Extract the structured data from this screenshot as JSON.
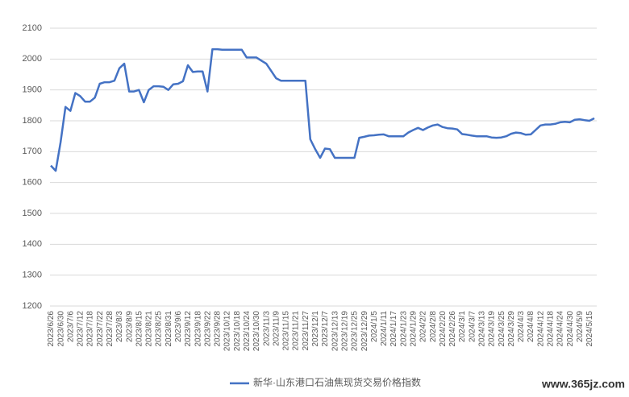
{
  "chart_data": {
    "type": "line",
    "categories": [
      "2023/6/26",
      null,
      "2023/6/30",
      null,
      "2023/7/6",
      null,
      "2023/7/12",
      null,
      "2023/7/18",
      null,
      "2023/7/22",
      null,
      "2023/7/28",
      null,
      "2023/8/3",
      null,
      "2023/8/9",
      null,
      "2023/8/15",
      null,
      "2023/8/21",
      null,
      "2023/8/25",
      null,
      "2023/8/31",
      null,
      "2023/9/6",
      null,
      "2023/9/12",
      null,
      "2023/9/18",
      null,
      "2023/9/22",
      null,
      "2023/9/28",
      null,
      "2023/10/12",
      null,
      "2023/10/18",
      null,
      "2023/10/24",
      null,
      "2023/10/30",
      null,
      "2023/11/3",
      null,
      "2023/11/9",
      null,
      "2023/11/15",
      null,
      "2023/11/21",
      null,
      "2023/11/27",
      null,
      "2023/12/1",
      null,
      "2023/12/7",
      null,
      "2023/12/13",
      null,
      "2023/12/19",
      null,
      "2023/12/25",
      null,
      "2023/12/29",
      null,
      "2024/1/5",
      null,
      "2024/1/11",
      null,
      "2024/1/17",
      null,
      "2024/1/23",
      null,
      "2024/1/29",
      null,
      "2024/2/2",
      null,
      "2024/2/8",
      null,
      "2024/2/20",
      null,
      "2024/2/26",
      null,
      "2024/3/1",
      null,
      "2024/3/7",
      null,
      "2024/3/13",
      null,
      "2024/3/19",
      null,
      "2024/3/25",
      null,
      "2024/3/29",
      null,
      "2024/4/3",
      null,
      "2024/4/8",
      null,
      "2024/4/12",
      null,
      "2024/4/18",
      null,
      "2024/4/24",
      null,
      "2024/4/30",
      null,
      "2024/5/9",
      null,
      "2024/5/15",
      null
    ],
    "series": [
      {
        "name": "新华·山东港口石油焦现货交易价格指数",
        "color": "#4472c4",
        "values": [
          1655,
          1638,
          1730,
          1845,
          1832,
          1890,
          1880,
          1862,
          1862,
          1875,
          1920,
          1925,
          1925,
          1930,
          1970,
          1985,
          1895,
          1895,
          1900,
          1860,
          1900,
          1912,
          1912,
          1910,
          1900,
          1918,
          1920,
          1928,
          1980,
          1958,
          1960,
          1960,
          1895,
          2032,
          2032,
          2030,
          2030,
          2030,
          2030,
          2030,
          2005,
          2005,
          2005,
          1995,
          1985,
          1962,
          1938,
          1930,
          1930,
          1930,
          1930,
          1930,
          1930,
          1740,
          1708,
          1680,
          1710,
          1708,
          1680,
          1680,
          1680,
          1680,
          1680,
          1745,
          1748,
          1752,
          1753,
          1755,
          1756,
          1750,
          1750,
          1750,
          1750,
          1762,
          1770,
          1777,
          1770,
          1778,
          1785,
          1788,
          1780,
          1776,
          1775,
          1772,
          1757,
          1755,
          1752,
          1750,
          1750,
          1750,
          1746,
          1745,
          1746,
          1750,
          1758,
          1762,
          1760,
          1755,
          1756,
          1770,
          1785,
          1788,
          1788,
          1790,
          1795,
          1797,
          1795,
          1803,
          1805,
          1802,
          1800,
          1808
        ]
      }
    ],
    "ylim": [
      1200,
      2100
    ],
    "yticks": [
      1200,
      1300,
      1400,
      1500,
      1600,
      1700,
      1800,
      1900,
      2000,
      2100
    ],
    "grid": true,
    "legend": "bottom",
    "watermark": "www.365jz.com"
  }
}
